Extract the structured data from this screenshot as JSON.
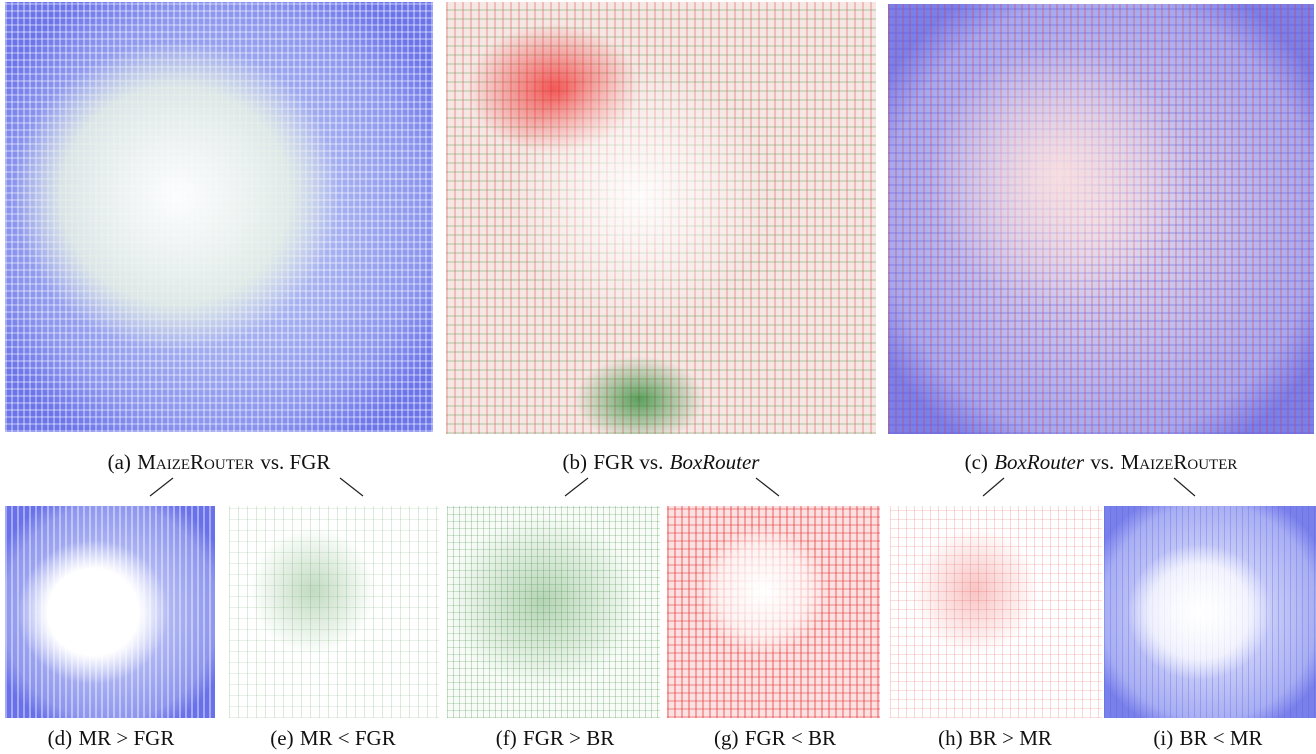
{
  "figures": [
    {
      "tag": "(a)",
      "segments": [
        {
          "text": "MaizeRouter",
          "style": "smallcaps"
        },
        {
          "text": "vs. FGR",
          "style": "plain"
        }
      ]
    },
    {
      "tag": "(b)",
      "segments": [
        {
          "text": "FGR vs.",
          "style": "plain"
        },
        {
          "text": "BoxRouter",
          "style": "italic"
        }
      ]
    },
    {
      "tag": "(c)",
      "segments": [
        {
          "text": "BoxRouter",
          "style": "italic"
        },
        {
          "text": "vs.",
          "style": "plain"
        },
        {
          "text": "MaizeRouter",
          "style": "smallcaps"
        }
      ]
    },
    {
      "tag": "(d)",
      "segments": [
        {
          "text": "MR > FGR",
          "style": "plain"
        }
      ]
    },
    {
      "tag": "(e)",
      "segments": [
        {
          "text": "MR < FGR",
          "style": "plain"
        }
      ]
    },
    {
      "tag": "(f)",
      "segments": [
        {
          "text": "FGR > BR",
          "style": "plain"
        }
      ]
    },
    {
      "tag": "(g)",
      "segments": [
        {
          "text": "FGR < BR",
          "style": "plain"
        }
      ]
    },
    {
      "tag": "(h)",
      "segments": [
        {
          "text": "BR > MR",
          "style": "plain"
        }
      ]
    },
    {
      "tag": "(i)",
      "segments": [
        {
          "text": "BR < MR",
          "style": "plain"
        }
      ]
    }
  ]
}
